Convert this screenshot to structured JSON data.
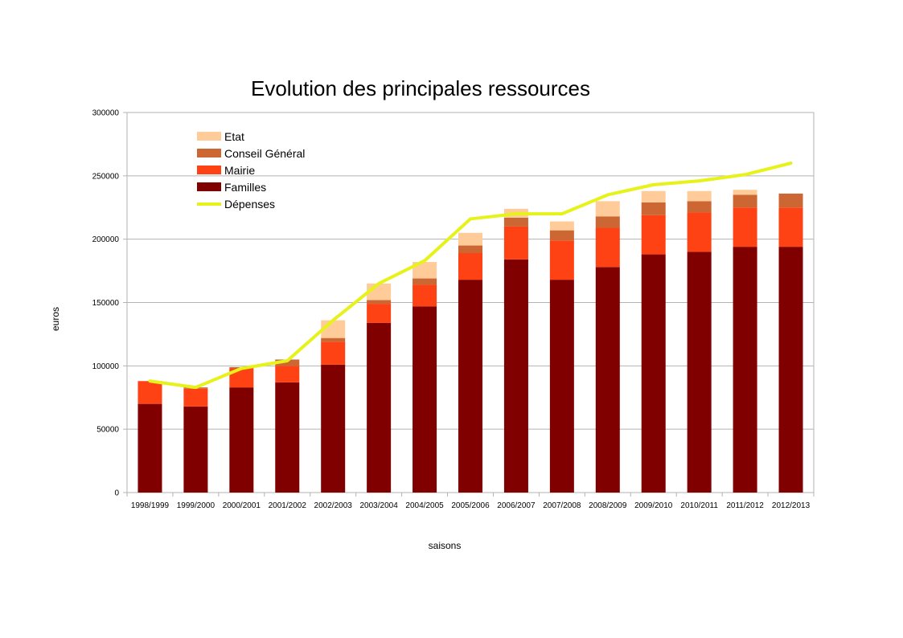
{
  "chart_data": {
    "type": "bar",
    "stacked": true,
    "title": "Evolution des principales ressources",
    "xlabel": "saisons",
    "ylabel": "euros",
    "ylim": [
      0,
      300000
    ],
    "yticks": [
      0,
      50000,
      100000,
      150000,
      200000,
      250000,
      300000
    ],
    "grid": true,
    "legend_position": "top-left",
    "categories": [
      "1998/1999",
      "1999/2000",
      "2000/2001",
      "2001/2002",
      "2002/2003",
      "2003/2004",
      "2004/2005",
      "2005/2006",
      "2006/2007",
      "2007/2008",
      "2008/2009",
      "2009/2010",
      "2010/2011",
      "2011/2012",
      "2012/2013"
    ],
    "series": [
      {
        "name": "Familles",
        "color": "#800000",
        "values": [
          70000,
          68000,
          83000,
          87000,
          101000,
          134000,
          147000,
          168000,
          184000,
          168000,
          178000,
          188000,
          190000,
          194000,
          194000
        ]
      },
      {
        "name": "Mairie",
        "color": "#ff4214",
        "values": [
          18000,
          14000,
          15000,
          13000,
          18000,
          15000,
          17000,
          21000,
          26000,
          31000,
          31000,
          31000,
          31000,
          31000,
          31000
        ]
      },
      {
        "name": "Conseil Général",
        "color": "#cc6633",
        "values": [
          0,
          1000,
          1000,
          5000,
          3000,
          3000,
          5000,
          6000,
          7000,
          8000,
          9000,
          10000,
          9000,
          10000,
          11000
        ]
      },
      {
        "name": "Etat",
        "color": "#ffcc99",
        "values": [
          0,
          0,
          0,
          0,
          14000,
          13000,
          13000,
          10000,
          7000,
          7000,
          12000,
          9000,
          8000,
          4000,
          0
        ]
      }
    ],
    "line": {
      "name": "Dépenses",
      "color": "#e6f21a",
      "values": [
        88000,
        83000,
        98000,
        104000,
        136000,
        165000,
        183000,
        216000,
        220000,
        220000,
        235000,
        243000,
        246000,
        251000,
        260000
      ]
    },
    "legend_order": [
      "Etat",
      "Conseil Général",
      "Mairie",
      "Familles",
      "Dépenses"
    ]
  }
}
